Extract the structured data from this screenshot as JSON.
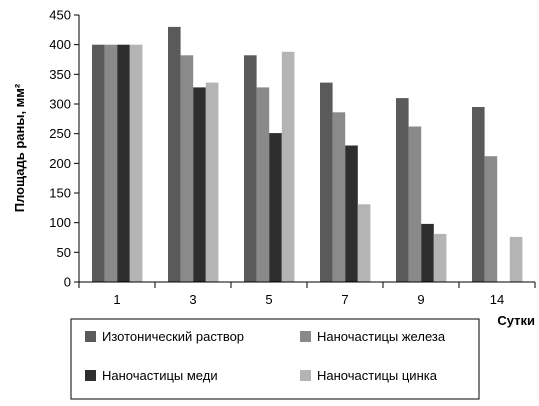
{
  "chart_data": {
    "type": "bar",
    "categories": [
      "1",
      "3",
      "5",
      "7",
      "9",
      "14"
    ],
    "series": [
      {
        "name": "Изотонический раствор",
        "color": "#5a5a5a",
        "values": [
          400,
          430,
          382,
          336,
          310,
          295
        ]
      },
      {
        "name": "Наночастицы железа",
        "color": "#8a8a8a",
        "values": [
          400,
          382,
          328,
          286,
          262,
          212
        ]
      },
      {
        "name": "Наночастицы меди",
        "color": "#2e2e2e",
        "values": [
          400,
          328,
          251,
          230,
          98,
          null
        ]
      },
      {
        "name": "Наночастицы цинка",
        "color": "#b4b4b4",
        "values": [
          400,
          336,
          388,
          131,
          81,
          76
        ]
      }
    ],
    "xlabel": "Сутки",
    "ylabel": "Площадь раны, мм²",
    "ylim": [
      0,
      450
    ],
    "yticks": [
      "0",
      "50",
      "100",
      "150",
      "200",
      "250",
      "300",
      "350",
      "400",
      "450"
    ],
    "grid": false,
    "legend_position": "bottom"
  }
}
